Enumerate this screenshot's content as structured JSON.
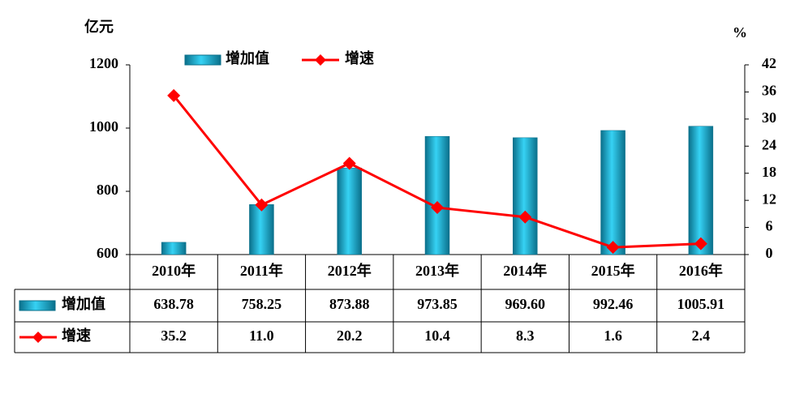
{
  "chart_data": {
    "type": "bar-line-table",
    "y_label": "亿元",
    "y2_label": "%",
    "categories": [
      "2010年",
      "2011年",
      "2012年",
      "2013年",
      "2014年",
      "2015年",
      "2016年"
    ],
    "series": [
      {
        "name": "增加值",
        "type": "bar",
        "color": "#1fb5d8",
        "values": [
          638.78,
          758.25,
          873.88,
          973.85,
          969.6,
          992.46,
          1005.91
        ],
        "value_labels": [
          "638.78",
          "758.25",
          "873.88",
          "973.85",
          "969.60",
          "992.46",
          "1005.91"
        ]
      },
      {
        "name": "增速",
        "type": "line",
        "axis": "y2",
        "color": "#ff0000",
        "values": [
          35.2,
          11.0,
          20.2,
          10.4,
          8.3,
          1.6,
          2.4
        ],
        "value_labels": [
          "35.2",
          "11.0",
          "20.2",
          "10.4",
          "8.3",
          "1.6",
          "2.4"
        ]
      }
    ],
    "ylim": [
      600,
      1200
    ],
    "yticks": [
      600,
      800,
      1000,
      1200
    ],
    "y2lim": [
      0,
      42
    ],
    "y2ticks": [
      0,
      6,
      12,
      18,
      24,
      30,
      36,
      42
    ]
  }
}
